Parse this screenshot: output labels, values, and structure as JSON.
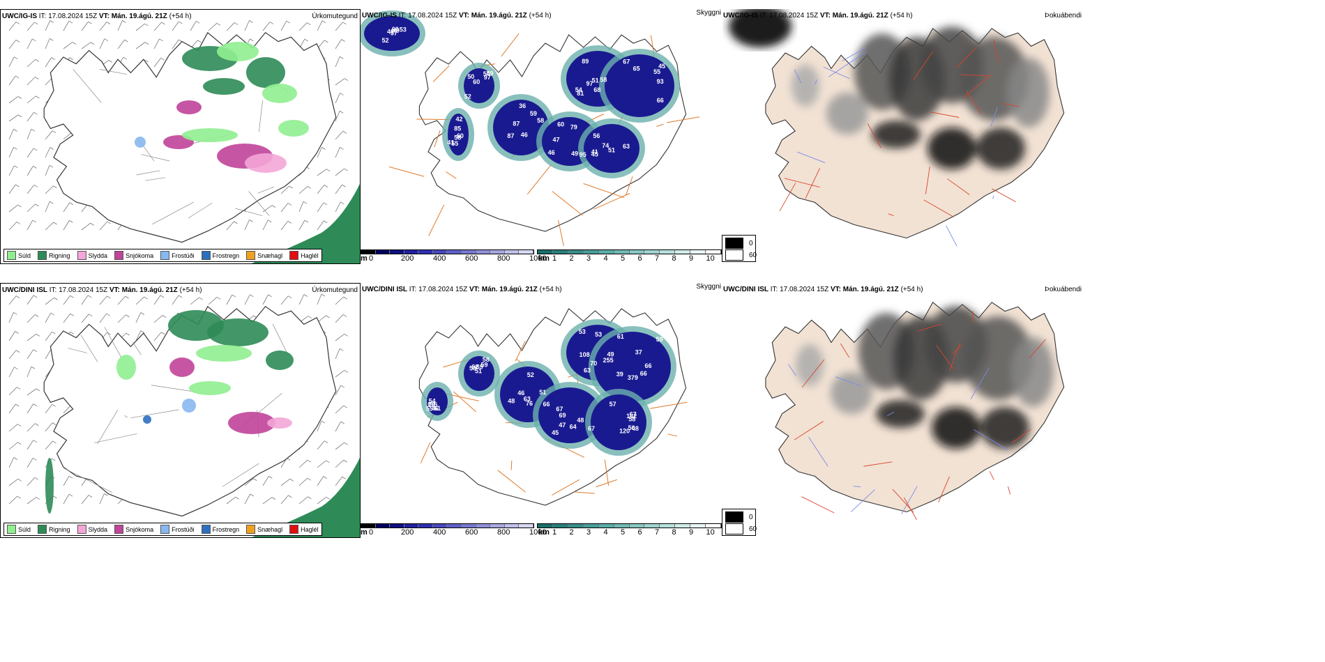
{
  "panels": [
    {
      "model": "UWC/IG-IS",
      "it_prefix": "IT:",
      "it": "17.08.2024 15Z",
      "vt_prefix": "VT:",
      "vt": "Mán. 19.ágú. 21Z",
      "lead": "(+54 h)",
      "type": "Úrkomutegund"
    },
    {
      "model": "UWC/IG-IS",
      "it_prefix": "IT:",
      "it": "17.08.2024 15Z",
      "vt_prefix": "VT:",
      "vt": "Mán. 19.ágú. 21Z",
      "lead": "(+54 h)",
      "type": "Skyggni"
    },
    {
      "model": "UWC/IG-IS",
      "it_prefix": "IT:",
      "it": "17.08.2024 15Z",
      "vt_prefix": "VT:",
      "vt": "Mán. 19.ágú. 21Z",
      "lead": "(+54 h)",
      "type": "Þokuábendi"
    },
    {
      "model": "UWC/DINI ISL",
      "it_prefix": "IT:",
      "it": "17.08.2024 15Z",
      "vt_prefix": "VT:",
      "vt": "Mán. 19.ágú. 21Z",
      "lead": "(+54 h)",
      "type": "Úrkomutegund"
    },
    {
      "model": "UWC/DINI ISL",
      "it_prefix": "IT:",
      "it": "17.08.2024 15Z",
      "vt_prefix": "VT:",
      "vt": "Mán. 19.ágú. 21Z",
      "lead": "(+54 h)",
      "type": "Skyggni"
    },
    {
      "model": "UWC/DINI ISL",
      "it_prefix": "IT:",
      "it": "17.08.2024 15Z",
      "vt_prefix": "VT:",
      "vt": "Mán. 19.ágú. 21Z",
      "lead": "(+54 h)",
      "type": "Þokuábendi"
    }
  ],
  "precip_legend": [
    {
      "label": "Súld",
      "color": "#90ee90"
    },
    {
      "label": "Rigning",
      "color": "#2e8b57"
    },
    {
      "label": "Slydda",
      "color": "#f4a6d7"
    },
    {
      "label": "Snjókoma",
      "color": "#c0449a"
    },
    {
      "label": "Frostúði",
      "color": "#87b8f0"
    },
    {
      "label": "Frostregn",
      "color": "#2d6fbf"
    },
    {
      "label": "Snæhagl",
      "color": "#f0a020"
    },
    {
      "label": "Haglél",
      "color": "#e01010"
    }
  ],
  "vis_scale_m": {
    "unit": "m",
    "ticks": [
      "0",
      "200",
      "400",
      "600",
      "800",
      "1000"
    ]
  },
  "vis_scale_km": {
    "unit": "km",
    "ticks": [
      "1",
      "2",
      "3",
      "4",
      "5",
      "6",
      "7",
      "8",
      "9",
      "10"
    ]
  },
  "fog_legend": [
    {
      "label": "0",
      "color": "#000000"
    },
    {
      "label": "60",
      "color": "#ffffff"
    }
  ],
  "vis_values": [
    [
      "89",
      "93",
      "87",
      "95",
      "45",
      "50",
      "49",
      "55",
      "97",
      "45",
      "59",
      "60",
      "56",
      "59",
      "52",
      "42",
      "81",
      "55",
      "36",
      "49",
      "41",
      "60",
      "53",
      "85",
      "51",
      "66",
      "87",
      "46",
      "74",
      "54",
      "57",
      "58",
      "68",
      "67",
      "46",
      "79",
      "51",
      "52",
      "49",
      "60",
      "54",
      "65",
      "58",
      "47",
      "63",
      "97",
      "60",
      "41",
      "58"
    ],
    [
      "63",
      "66",
      "46",
      "47",
      "48",
      "59",
      "54",
      "61",
      "66",
      "48",
      "67",
      "50",
      "51",
      "84",
      "53",
      "37",
      "51",
      "45",
      "67",
      "58",
      "115",
      "53",
      "39",
      "76",
      "67",
      "120",
      "69",
      "61",
      "108",
      "379",
      "63",
      "69",
      "162",
      "58",
      "46",
      "49",
      "255",
      "52",
      "48",
      "57",
      "62",
      "55",
      "70",
      "59",
      "66",
      "64",
      "58"
    ]
  ]
}
